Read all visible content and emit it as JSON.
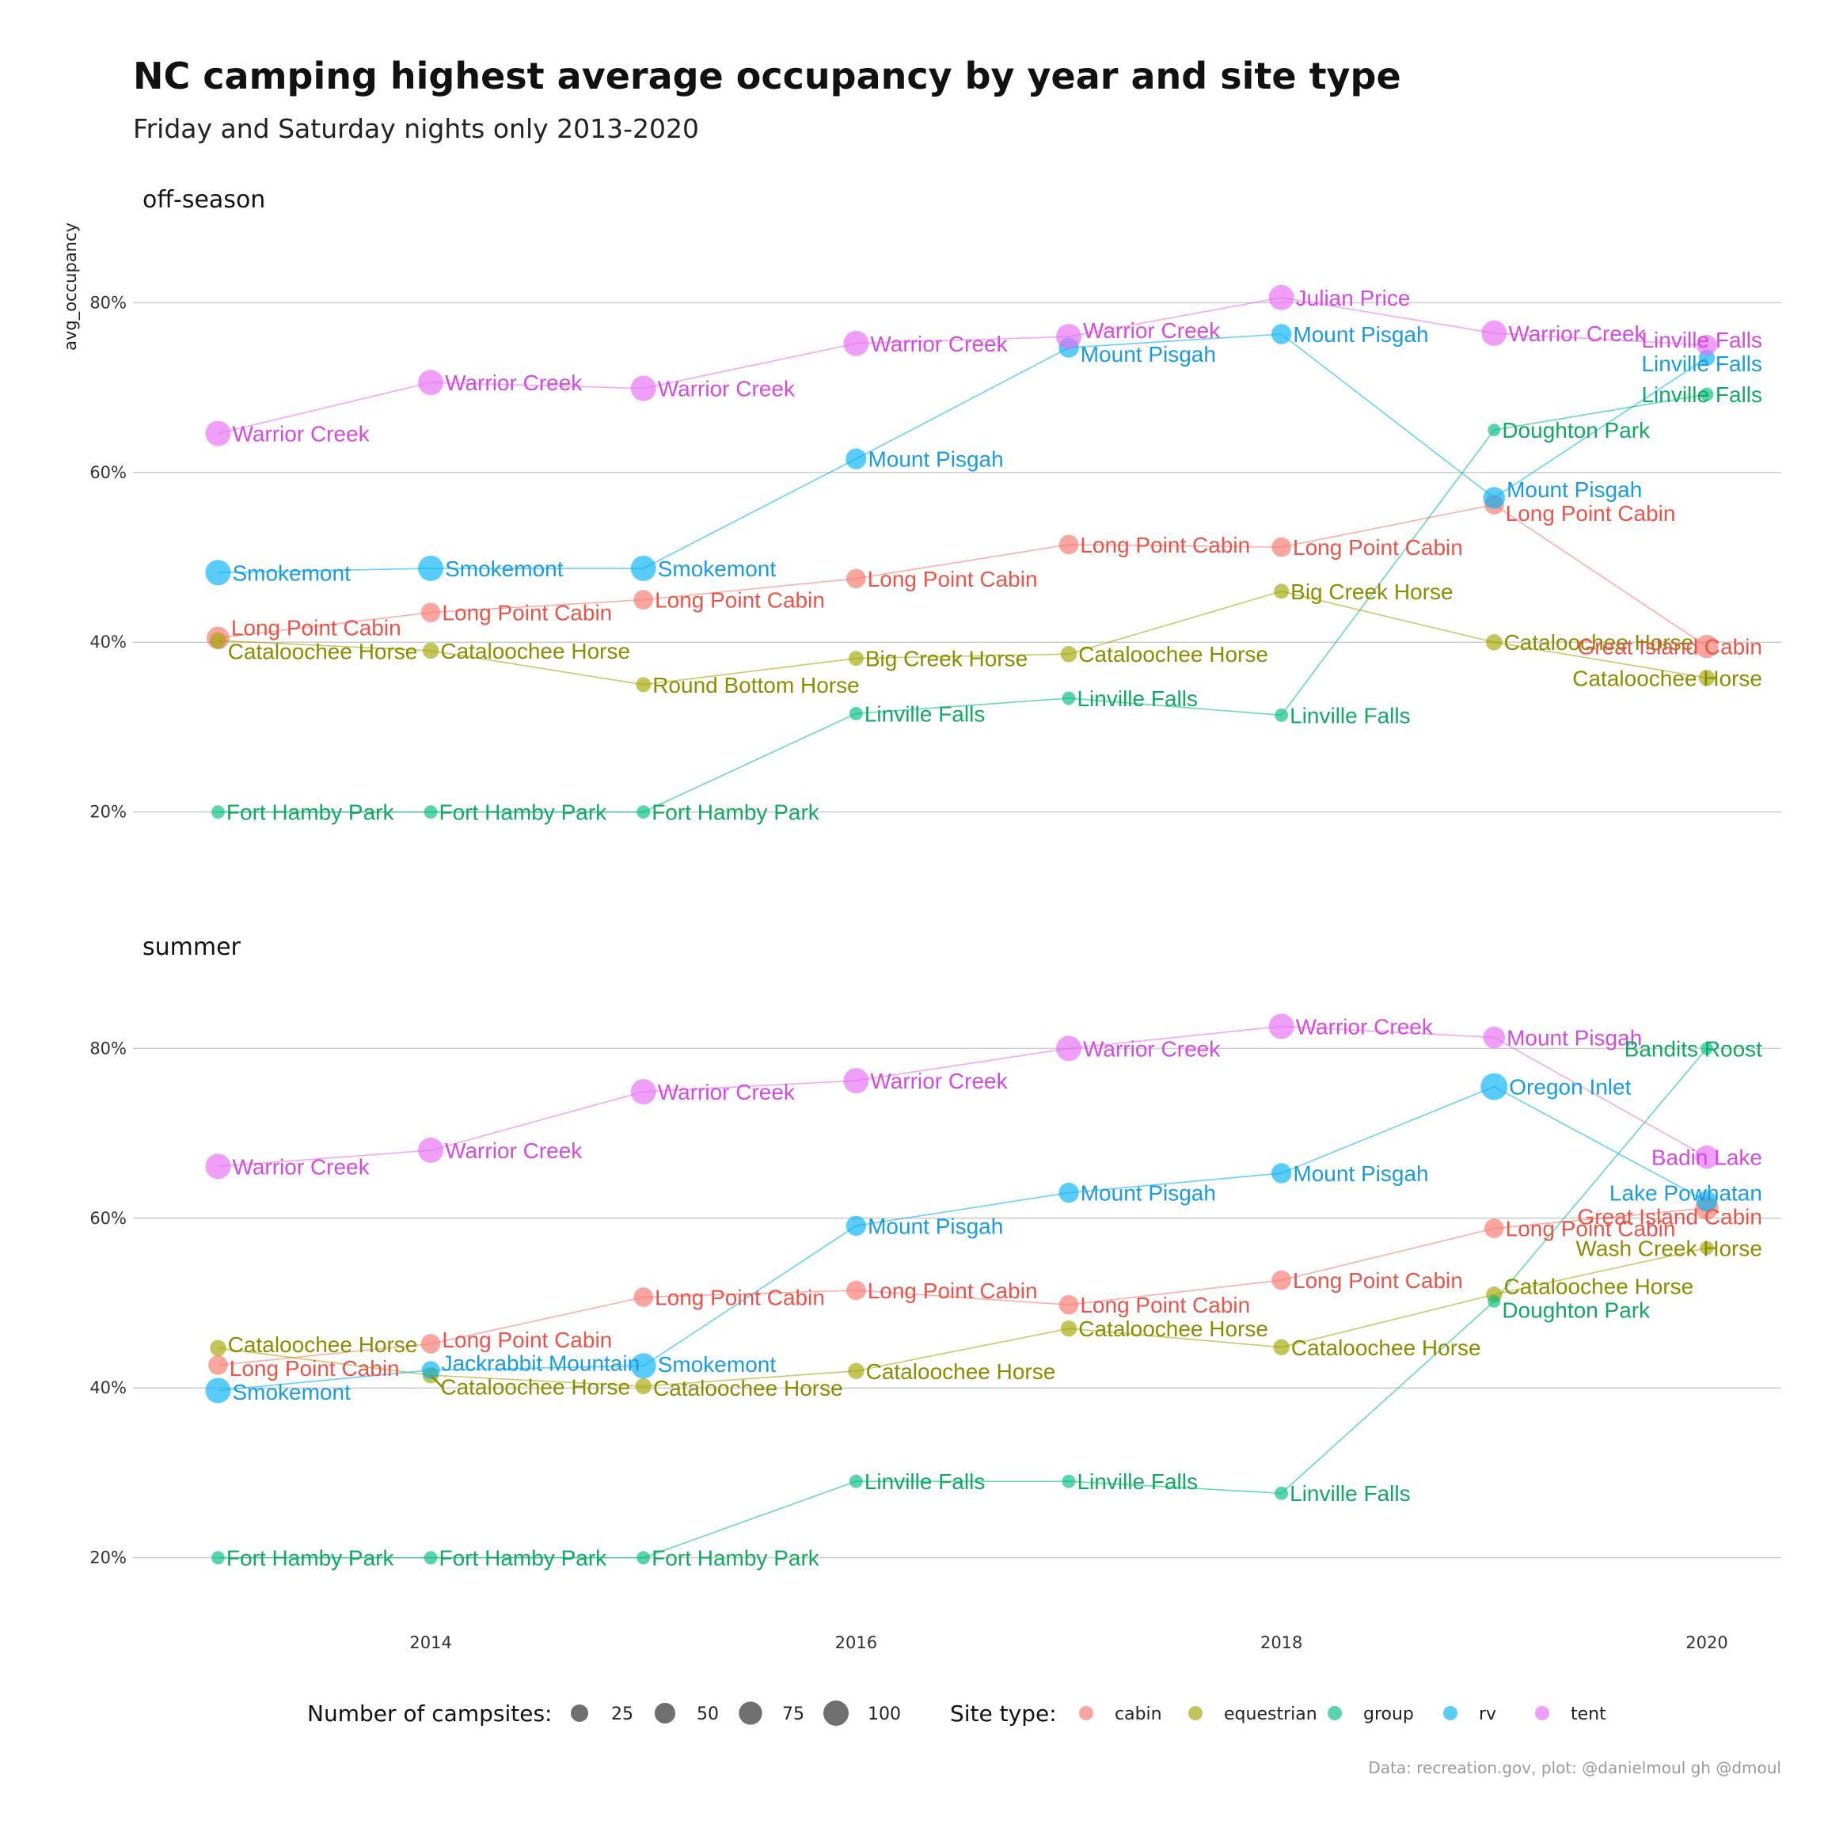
{
  "chart_data": {
    "type": "scatter",
    "title": "NC camping highest average occupancy by year and site type",
    "subtitle": "Friday and Saturday nights only 2013-2020",
    "ylabel": "avg_occupancy",
    "caption": "Data: recreation.gov, plot: @danielmoul gh @dmoul",
    "xlim": [
      2012.6,
      2020.35
    ],
    "ylim": [
      0.14,
      0.86
    ],
    "x_ticks": [
      2014,
      2016,
      2018,
      2020
    ],
    "x_tick_labels": [
      "2014",
      "2016",
      "2018",
      "2020"
    ],
    "y_ticks": [
      0.2,
      0.4,
      0.6,
      0.8
    ],
    "y_tick_labels": [
      "20%",
      "40%",
      "60%",
      "80%"
    ],
    "grid": "horizontal",
    "colors": {
      "cabin": "#F8766D",
      "equestrian": "#A3A500",
      "group": "#00BF7D",
      "rv": "#00B0F6",
      "tent": "#E76BF3"
    },
    "label_colors": {
      "cabin": "#E8544A",
      "equestrian": "#8C8C00",
      "group": "#12A864",
      "rv": "#1A9BE0",
      "tent": "#D34BDE"
    },
    "legend": {
      "position": "bottom",
      "size_title": "Number of campsites:",
      "size_values": [
        25,
        50,
        75,
        100
      ],
      "size_labels": [
        "25",
        "50",
        "75",
        "100"
      ],
      "color_title": "Site type:",
      "color_keys": [
        "cabin",
        "equestrian",
        "group",
        "rv",
        "tent"
      ]
    },
    "facets": [
      {
        "name": "off-season",
        "series": [
          {
            "key": "cabin",
            "points": [
              {
                "x": 2013,
                "y": 0.405,
                "n": 70,
                "label": "Long Point Cabin"
              },
              {
                "x": 2014,
                "y": 0.435,
                "n": 40,
                "label": "Long Point Cabin"
              },
              {
                "x": 2015,
                "y": 0.45,
                "n": 40,
                "label": "Long Point Cabin"
              },
              {
                "x": 2016,
                "y": 0.475,
                "n": 40,
                "label": "Long Point Cabin"
              },
              {
                "x": 2017,
                "y": 0.515,
                "n": 40,
                "label": "Long Point Cabin"
              },
              {
                "x": 2018,
                "y": 0.512,
                "n": 40,
                "label": "Long Point Cabin"
              },
              {
                "x": 2019,
                "y": 0.562,
                "n": 40,
                "label": "Long Point Cabin"
              },
              {
                "x": 2020,
                "y": 0.395,
                "n": 75,
                "label": "Great Island Cabin"
              }
            ]
          },
          {
            "key": "equestrian",
            "points": [
              {
                "x": 2013,
                "y": 0.402,
                "n": 18,
                "label": "Cataloochee Horse"
              },
              {
                "x": 2014,
                "y": 0.39,
                "n": 18,
                "label": "Cataloochee Horse"
              },
              {
                "x": 2015,
                "y": 0.35,
                "n": 12,
                "label": "Round Bottom Horse"
              },
              {
                "x": 2016,
                "y": 0.381,
                "n": 12,
                "label": "Big Creek Horse"
              },
              {
                "x": 2017,
                "y": 0.386,
                "n": 18,
                "label": "Cataloochee Horse"
              },
              {
                "x": 2018,
                "y": 0.46,
                "n": 12,
                "label": "Big Creek Horse"
              },
              {
                "x": 2019,
                "y": 0.4,
                "n": 18,
                "label": "Cataloochee Horse"
              },
              {
                "x": 2020,
                "y": 0.358,
                "n": 18,
                "label": "Cataloochee Horse"
              }
            ]
          },
          {
            "key": "group",
            "points": [
              {
                "x": 2013,
                "y": 0.2,
                "n": 6,
                "label": "Fort Hamby Park"
              },
              {
                "x": 2014,
                "y": 0.2,
                "n": 6,
                "label": "Fort Hamby Park"
              },
              {
                "x": 2015,
                "y": 0.2,
                "n": 6,
                "label": "Fort Hamby Park"
              },
              {
                "x": 2016,
                "y": 0.316,
                "n": 6,
                "label": "Linville Falls"
              },
              {
                "x": 2017,
                "y": 0.334,
                "n": 6,
                "label": "Linville Falls"
              },
              {
                "x": 2018,
                "y": 0.314,
                "n": 6,
                "label": "Linville Falls"
              },
              {
                "x": 2019,
                "y": 0.65,
                "n": 4,
                "label": "Doughton Park"
              },
              {
                "x": 2020,
                "y": 0.692,
                "n": 6,
                "label": "Linville Falls"
              }
            ]
          },
          {
            "key": "rv",
            "points": [
              {
                "x": 2013,
                "y": 0.482,
                "n": 100,
                "label": "Smokemont"
              },
              {
                "x": 2014,
                "y": 0.487,
                "n": 100,
                "label": "Smokemont"
              },
              {
                "x": 2015,
                "y": 0.487,
                "n": 100,
                "label": "Smokemont"
              },
              {
                "x": 2016,
                "y": 0.616,
                "n": 50,
                "label": "Mount Pisgah"
              },
              {
                "x": 2017,
                "y": 0.747,
                "n": 45,
                "label": "Mount Pisgah"
              },
              {
                "x": 2018,
                "y": 0.763,
                "n": 45,
                "label": "Mount Pisgah"
              },
              {
                "x": 2019,
                "y": 0.57,
                "n": 60,
                "label": "Mount Pisgah"
              },
              {
                "x": 2020,
                "y": 0.735,
                "n": 18,
                "label": "Linville Falls"
              }
            ]
          },
          {
            "key": "tent",
            "points": [
              {
                "x": 2013,
                "y": 0.646,
                "n": 100,
                "label": "Warrior Creek"
              },
              {
                "x": 2014,
                "y": 0.706,
                "n": 100,
                "label": "Warrior Creek"
              },
              {
                "x": 2015,
                "y": 0.699,
                "n": 100,
                "label": "Warrior Creek"
              },
              {
                "x": 2016,
                "y": 0.752,
                "n": 100,
                "label": "Warrior Creek"
              },
              {
                "x": 2017,
                "y": 0.76,
                "n": 100,
                "label": "Warrior Creek"
              },
              {
                "x": 2018,
                "y": 0.806,
                "n": 100,
                "label": "Julian Price"
              },
              {
                "x": 2019,
                "y": 0.764,
                "n": 100,
                "label": "Warrior Creek"
              },
              {
                "x": 2020,
                "y": 0.75,
                "n": 50,
                "label": "Linville Falls"
              }
            ]
          }
        ]
      },
      {
        "name": "summer",
        "series": [
          {
            "key": "cabin",
            "points": [
              {
                "x": 2013,
                "y": 0.427,
                "n": 40,
                "label": "Long Point Cabin"
              },
              {
                "x": 2014,
                "y": 0.452,
                "n": 40,
                "label": "Long Point Cabin"
              },
              {
                "x": 2015,
                "y": 0.507,
                "n": 40,
                "label": "Long Point Cabin"
              },
              {
                "x": 2016,
                "y": 0.515,
                "n": 40,
                "label": "Long Point Cabin"
              },
              {
                "x": 2017,
                "y": 0.498,
                "n": 40,
                "label": "Long Point Cabin"
              },
              {
                "x": 2018,
                "y": 0.527,
                "n": 40,
                "label": "Long Point Cabin"
              },
              {
                "x": 2019,
                "y": 0.588,
                "n": 40,
                "label": "Long Point Cabin"
              },
              {
                "x": 2020,
                "y": 0.612,
                "n": 75,
                "label": "Great Island Cabin"
              }
            ]
          },
          {
            "key": "equestrian",
            "points": [
              {
                "x": 2013,
                "y": 0.447,
                "n": 18,
                "label": "Cataloochee Horse"
              },
              {
                "x": 2014,
                "y": 0.415,
                "n": 18,
                "label": "Cataloochee Horse"
              },
              {
                "x": 2015,
                "y": 0.402,
                "n": 18,
                "label": "Cataloochee Horse"
              },
              {
                "x": 2016,
                "y": 0.42,
                "n": 18,
                "label": "Cataloochee Horse"
              },
              {
                "x": 2017,
                "y": 0.47,
                "n": 18,
                "label": "Cataloochee Horse"
              },
              {
                "x": 2018,
                "y": 0.448,
                "n": 18,
                "label": "Cataloochee Horse"
              },
              {
                "x": 2019,
                "y": 0.51,
                "n": 18,
                "label": "Cataloochee Horse"
              },
              {
                "x": 2020,
                "y": 0.565,
                "n": 8,
                "label": "Wash Creek Horse"
              }
            ]
          },
          {
            "key": "group",
            "points": [
              {
                "x": 2013,
                "y": 0.2,
                "n": 6,
                "label": "Fort Hamby Park"
              },
              {
                "x": 2014,
                "y": 0.2,
                "n": 6,
                "label": "Fort Hamby Park"
              },
              {
                "x": 2015,
                "y": 0.2,
                "n": 6,
                "label": "Fort Hamby Park"
              },
              {
                "x": 2016,
                "y": 0.29,
                "n": 6,
                "label": "Linville Falls"
              },
              {
                "x": 2017,
                "y": 0.29,
                "n": 6,
                "label": "Linville Falls"
              },
              {
                "x": 2018,
                "y": 0.276,
                "n": 6,
                "label": "Linville Falls"
              },
              {
                "x": 2019,
                "y": 0.502,
                "n": 4,
                "label": "Doughton Park"
              },
              {
                "x": 2020,
                "y": 0.8,
                "n": 4,
                "label": "Bandits Roost"
              }
            ]
          },
          {
            "key": "rv",
            "points": [
              {
                "x": 2013,
                "y": 0.397,
                "n": 100,
                "label": "Smokemont"
              },
              {
                "x": 2014,
                "y": 0.421,
                "n": 30,
                "label": "Jackrabbit Mountain"
              },
              {
                "x": 2015,
                "y": 0.426,
                "n": 100,
                "label": "Smokemont"
              },
              {
                "x": 2016,
                "y": 0.591,
                "n": 45,
                "label": "Mount Pisgah"
              },
              {
                "x": 2017,
                "y": 0.63,
                "n": 45,
                "label": "Mount Pisgah"
              },
              {
                "x": 2018,
                "y": 0.653,
                "n": 45,
                "label": "Mount Pisgah"
              },
              {
                "x": 2019,
                "y": 0.755,
                "n": 120,
                "label": "Oregon Inlet"
              },
              {
                "x": 2020,
                "y": 0.62,
                "n": 50,
                "label": "Lake Powhatan"
              }
            ]
          },
          {
            "key": "tent",
            "points": [
              {
                "x": 2013,
                "y": 0.661,
                "n": 100,
                "label": "Warrior Creek"
              },
              {
                "x": 2014,
                "y": 0.68,
                "n": 100,
                "label": "Warrior Creek"
              },
              {
                "x": 2015,
                "y": 0.749,
                "n": 100,
                "label": "Warrior Creek"
              },
              {
                "x": 2016,
                "y": 0.762,
                "n": 100,
                "label": "Warrior Creek"
              },
              {
                "x": 2017,
                "y": 0.8,
                "n": 100,
                "label": "Warrior Creek"
              },
              {
                "x": 2018,
                "y": 0.826,
                "n": 100,
                "label": "Warrior Creek"
              },
              {
                "x": 2019,
                "y": 0.813,
                "n": 60,
                "label": "Mount Pisgah"
              },
              {
                "x": 2020,
                "y": 0.672,
                "n": 75,
                "label": "Badin Lake"
              }
            ]
          }
        ]
      }
    ]
  }
}
